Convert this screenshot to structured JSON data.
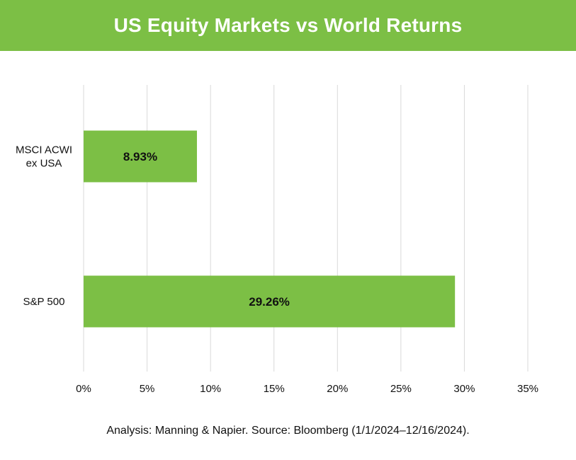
{
  "header": {
    "title": "US Equity Markets vs World Returns"
  },
  "footer": {
    "source": "Analysis: Manning & Napier. Source: Bloomberg (1/1/2024–12/16/2024)."
  },
  "colors": {
    "header_bg": "#7cbf45",
    "bar": "#7cbf45",
    "grid": "#d9d9d9",
    "text": "#111111"
  },
  "chart_data": {
    "type": "bar",
    "orientation": "horizontal",
    "title": "US Equity Markets vs World Returns",
    "xlabel": "",
    "ylabel": "",
    "categories": [
      [
        "MSCI ACWI",
        "ex USA"
      ],
      [
        "S&P 500"
      ]
    ],
    "values": [
      8.93,
      29.26
    ],
    "data_labels": [
      "8.93%",
      "29.26%"
    ],
    "xlim": [
      0,
      35
    ],
    "xticks": [
      0,
      5,
      10,
      15,
      20,
      25,
      30,
      35
    ],
    "xtick_labels": [
      "0%",
      "5%",
      "10%",
      "15%",
      "20%",
      "25%",
      "30%",
      "35%"
    ],
    "grid": "vertical",
    "legend": "none"
  }
}
